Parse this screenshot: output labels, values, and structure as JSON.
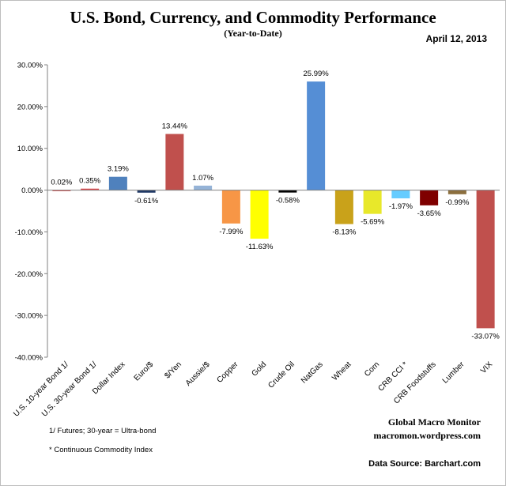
{
  "chart_data": {
    "type": "bar",
    "title": "U.S. Bond, Currency, and Commodity Performance",
    "subtitle": "(Year-to-Date)",
    "date": "April 12, 2013",
    "xlabel": "",
    "ylabel": "",
    "ylim": [
      -40,
      30
    ],
    "ytick_values": [
      30,
      20,
      10,
      0,
      -10,
      -20,
      -30,
      -40
    ],
    "ytick_labels": [
      "30.00%",
      "20.00%",
      "10.00%",
      "0.00%",
      "-10.00%",
      "-20.00%",
      "-30.00%",
      "-40.00%"
    ],
    "categories": [
      "U.S. 10-year Bond 1/",
      "U.S. 30-year Bond 1/",
      "Dollar Index",
      "Euro/$",
      "$/Yen",
      "Aussie/$",
      "Copper",
      "Gold",
      "Crude Oil",
      "NatGas",
      "Wheat",
      "Corn",
      "CRB CCI *",
      "CRB Foodstuffs",
      "Lumber",
      "VIX"
    ],
    "values": [
      0.02,
      0.35,
      3.19,
      -0.61,
      13.44,
      1.07,
      -7.99,
      -11.63,
      -0.58,
      25.99,
      -8.13,
      -5.69,
      -1.97,
      -3.65,
      -0.99,
      -33.07
    ],
    "value_labels": [
      "0.02%",
      "0.35%",
      "3.19%",
      "-0.61%",
      "13.44%",
      "1.07%",
      "-7.99%",
      "-11.63%",
      "-0.58%",
      "25.99%",
      "-8.13%",
      "-5.69%",
      "-1.97%",
      "-3.65%",
      "-0.99%",
      "-33.07%"
    ],
    "colors": [
      "#c00000",
      "#e0474c",
      "#4f81bd",
      "#1f3864",
      "#c0504d",
      "#95b3d7",
      "#f79646",
      "#ffff00",
      "#000000",
      "#558ed5",
      "#c9a21a",
      "#e8e82a",
      "#66ccff",
      "#7f0000",
      "#8c6f3e",
      "#c0504d"
    ],
    "grid": false,
    "legend": "none"
  },
  "footer": {
    "note1": "1/   Futures; 30-year = Ultra-bond",
    "note2": "* Continuous Commodity Index",
    "brand_name": "Global Macro Monitor",
    "brand_url": "macromon.wordpress.com",
    "source": "Data Source:  Barchart.com"
  }
}
